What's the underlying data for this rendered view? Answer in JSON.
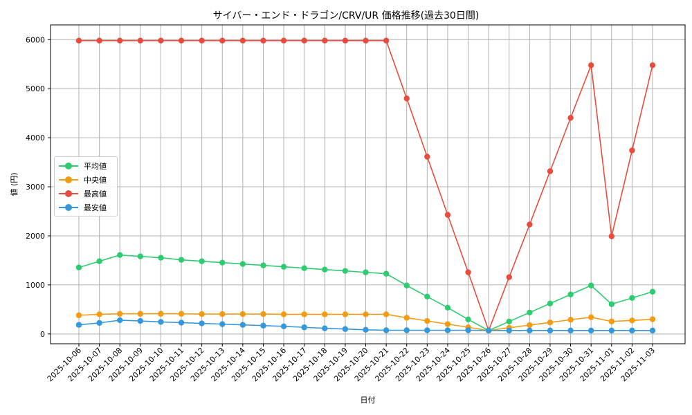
{
  "chart_data": {
    "type": "line",
    "title": "サイバー・エンド・ドラゴン/CRV/UR 価格推移(過去30日間)",
    "xlabel": "日付",
    "ylabel": "値 (円)",
    "ylim": [
      -200,
      6300
    ],
    "yticks": [
      0,
      1000,
      2000,
      3000,
      4000,
      5000,
      6000
    ],
    "grid": true,
    "legend_position": "center left",
    "x": [
      "2025-10-06",
      "2025-10-07",
      "2025-10-08",
      "2025-10-09",
      "2025-10-10",
      "2025-10-11",
      "2025-10-12",
      "2025-10-13",
      "2025-10-14",
      "2025-10-15",
      "2025-10-16",
      "2025-10-17",
      "2025-10-18",
      "2025-10-19",
      "2025-10-20",
      "2025-10-21",
      "2025-10-22",
      "2025-10-23",
      "2025-10-24",
      "2025-10-25",
      "2025-10-26",
      "2025-10-27",
      "2025-10-28",
      "2025-10-29",
      "2025-10-30",
      "2025-10-31",
      "2025-11-01",
      "2025-11-02",
      "2025-11-03"
    ],
    "series": [
      {
        "name": "平均値",
        "color": "#2ecc71",
        "values": [
          1355,
          1482,
          1609,
          1581,
          1553,
          1511,
          1482,
          1454,
          1426,
          1398,
          1369,
          1341,
          1313,
          1285,
          1256,
          1228,
          988,
          762,
          536,
          296,
          70,
          254,
          437,
          621,
          805,
          988,
          607,
          734,
          861
        ]
      },
      {
        "name": "中央値",
        "color": "#f39c12",
        "values": [
          380,
          400,
          410,
          410,
          410,
          410,
          405,
          405,
          405,
          405,
          400,
          400,
          400,
          400,
          400,
          400,
          330,
          265,
          200,
          135,
          70,
          125,
          180,
          235,
          290,
          340,
          255,
          275,
          300
        ]
      },
      {
        "name": "最高値",
        "color": "#e74c3c",
        "values": [
          5980,
          5980,
          5980,
          5980,
          5980,
          5980,
          5980,
          5980,
          5980,
          5980,
          5980,
          5980,
          5980,
          5980,
          5980,
          5980,
          4800,
          3614,
          2428,
          1257,
          70,
          1158,
          2231,
          3318,
          4405,
          5478,
          1991,
          3741,
          5478
        ]
      },
      {
        "name": "最安値",
        "color": "#3498db",
        "values": [
          185,
          225,
          280,
          265,
          245,
          230,
          215,
          200,
          185,
          170,
          155,
          135,
          115,
          100,
          85,
          75,
          75,
          75,
          75,
          75,
          70,
          70,
          70,
          70,
          70,
          70,
          70,
          70,
          70
        ]
      }
    ]
  }
}
